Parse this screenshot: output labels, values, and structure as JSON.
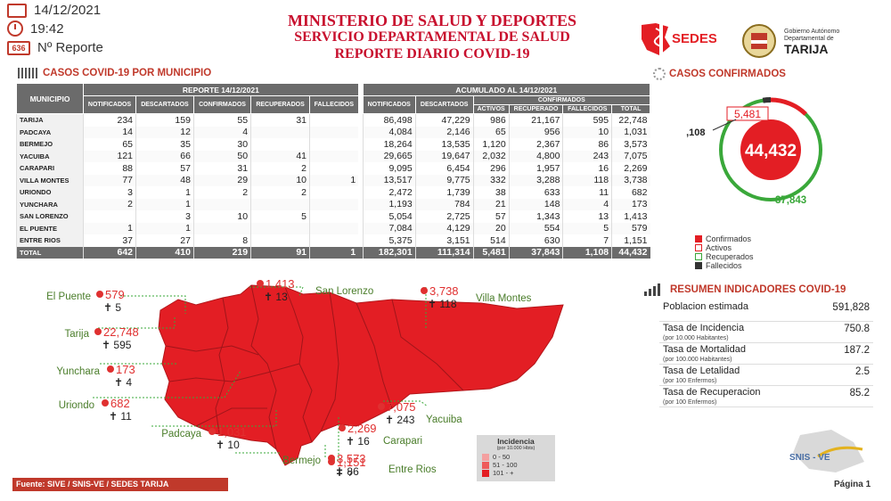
{
  "header": {
    "date": "14/12/2021",
    "time": "19:42",
    "report_no": "636",
    "report_label": "Nº Reporte",
    "title1": "MINISTERIO DE SALUD Y DEPORTES",
    "title2": "SERVICIO DEPARTAMENTAL DE SALUD",
    "title3": "REPORTE DIARIO COVID-19",
    "logo1_text": "SEDES",
    "logo2_small1": "Gobierno Autónomo",
    "logo2_small2": "Departamental de",
    "logo2_text": "TARIJA"
  },
  "section_municipio": "CASOS COVID-19 POR MUNICIPIO",
  "section_confirmados": "CASOS CONFIRMADOS",
  "table": {
    "col_municipio": "MUNICIPIO",
    "group_reporte": "REPORTE 14/12/2021",
    "group_acumulado": "ACUMULADO AL 14/12/2021",
    "group_confirmados": "CONFIRMADOS",
    "rep_cols": [
      "NOTIFICADOS",
      "DESCARTADOS",
      "CONFIRMADOS",
      "RECUPERADOS",
      "FALLECIDOS"
    ],
    "acc_cols": [
      "NOTIFICADOS",
      "DESCARTADOS"
    ],
    "conf_cols": [
      "ACTIVOS",
      "RECUPERADO",
      "FALLECIDOS",
      "TOTAL"
    ],
    "rows": [
      {
        "m": "TARIJA",
        "r": [
          "234",
          "159",
          "55",
          "31",
          ""
        ],
        "a": [
          "86,498",
          "47,229",
          "986",
          "21,167",
          "595",
          "22,748"
        ]
      },
      {
        "m": "PADCAYA",
        "r": [
          "14",
          "12",
          "4",
          "",
          ""
        ],
        "a": [
          "4,084",
          "2,146",
          "65",
          "956",
          "10",
          "1,031"
        ]
      },
      {
        "m": "BERMEJO",
        "r": [
          "65",
          "35",
          "30",
          "",
          ""
        ],
        "a": [
          "18,264",
          "13,535",
          "1,120",
          "2,367",
          "86",
          "3,573"
        ]
      },
      {
        "m": "YACUIBA",
        "r": [
          "121",
          "66",
          "50",
          "41",
          ""
        ],
        "a": [
          "29,665",
          "19,647",
          "2,032",
          "4,800",
          "243",
          "7,075"
        ]
      },
      {
        "m": "CARAPARI",
        "r": [
          "88",
          "57",
          "31",
          "2",
          ""
        ],
        "a": [
          "9,095",
          "6,454",
          "296",
          "1,957",
          "16",
          "2,269"
        ]
      },
      {
        "m": "VILLA MONTES",
        "r": [
          "77",
          "48",
          "29",
          "10",
          "1"
        ],
        "a": [
          "13,517",
          "9,775",
          "332",
          "3,288",
          "118",
          "3,738"
        ]
      },
      {
        "m": "URIONDO",
        "r": [
          "3",
          "1",
          "2",
          "2",
          ""
        ],
        "a": [
          "2,472",
          "1,739",
          "38",
          "633",
          "11",
          "682"
        ]
      },
      {
        "m": "YUNCHARA",
        "r": [
          "2",
          "1",
          "",
          "",
          ""
        ],
        "a": [
          "1,193",
          "784",
          "21",
          "148",
          "4",
          "173"
        ]
      },
      {
        "m": "SAN LORENZO",
        "r": [
          "",
          "3",
          "10",
          "5",
          ""
        ],
        "a": [
          "5,054",
          "2,725",
          "57",
          "1,343",
          "13",
          "1,413"
        ]
      },
      {
        "m": "EL PUENTE",
        "r": [
          "1",
          "1",
          "",
          "",
          ""
        ],
        "a": [
          "7,084",
          "4,129",
          "20",
          "554",
          "5",
          "579"
        ]
      },
      {
        "m": "ENTRE RIOS",
        "r": [
          "37",
          "27",
          "8",
          "",
          ""
        ],
        "a": [
          "5,375",
          "3,151",
          "514",
          "630",
          "7",
          "1,151"
        ]
      }
    ],
    "total": {
      "m": "TOTAL",
      "r": [
        "642",
        "410",
        "219",
        "91",
        "1"
      ],
      "a": [
        "182,301",
        "111,314",
        "5,481",
        "37,843",
        "1,108",
        "44,432"
      ]
    }
  },
  "donut": {
    "total": "44,432",
    "activos": "5,481",
    "fallecidos": "1,108",
    "recuperados": "37,843",
    "values": {
      "activos": 5481,
      "recuperados": 37843,
      "fallecidos": 1108
    },
    "legend": [
      "Confirmados",
      "Activos",
      "Recuperados",
      "Fallecidos"
    ]
  },
  "colors": {
    "red": "#e31e24",
    "green": "#3aa83a",
    "dark": "#333333",
    "header_gray": "#6b6b6b",
    "label_green": "#4a7d2a"
  },
  "indicators": {
    "title": "RESUMEN INDICADORES COVID-19",
    "rows": [
      {
        "label": "Poblacion estimada",
        "sub": "",
        "value": "591,828"
      },
      {
        "label": "Tasa de Incidencia",
        "sub": "(por 10.000 Habitantes)",
        "value": "750.8"
      },
      {
        "label": "Tasa de Mortalidad",
        "sub": "(por 100.000 Habitantes)",
        "value": "187.2"
      },
      {
        "label": "Tasa de Letalidad",
        "sub": "(por 100 Enfermos)",
        "value": "2.5"
      },
      {
        "label": "Tasa de Recuperacion",
        "sub": "(por 100 Enfermos)",
        "value": "85.2"
      }
    ]
  },
  "map": {
    "labels": [
      {
        "name": "El Puente",
        "cases": "579",
        "deaths": "5"
      },
      {
        "name": "San Lorenzo",
        "cases": "1,413",
        "deaths": "13"
      },
      {
        "name": "Villa Montes",
        "cases": "3,738",
        "deaths": "118"
      },
      {
        "name": "Tarija",
        "cases": "22,748",
        "deaths": "595"
      },
      {
        "name": "Yunchara",
        "cases": "173",
        "deaths": "4"
      },
      {
        "name": "Uriondo",
        "cases": "682",
        "deaths": "11"
      },
      {
        "name": "Yacuiba",
        "cases": "7,075",
        "deaths": "243"
      },
      {
        "name": "Carapari",
        "cases": "2,269",
        "deaths": "16"
      },
      {
        "name": "Padcaya",
        "cases": "1,031",
        "deaths": "10"
      },
      {
        "name": "Bermejo",
        "cases": "3,573",
        "deaths": "86"
      },
      {
        "name": "Entre Rios",
        "cases": "1,151",
        "deaths": "7"
      }
    ],
    "legend_title": "Incidencia",
    "legend_sub": "(por 10.000 Hbts)",
    "legend_items": [
      "0 - 50",
      "51 - 100",
      "101 - +"
    ]
  },
  "footer": {
    "source": "Fuente: SIVE / SNIS-VE / SEDES TARIJA",
    "page": "Página 1",
    "snis": "SNIS - VE"
  }
}
